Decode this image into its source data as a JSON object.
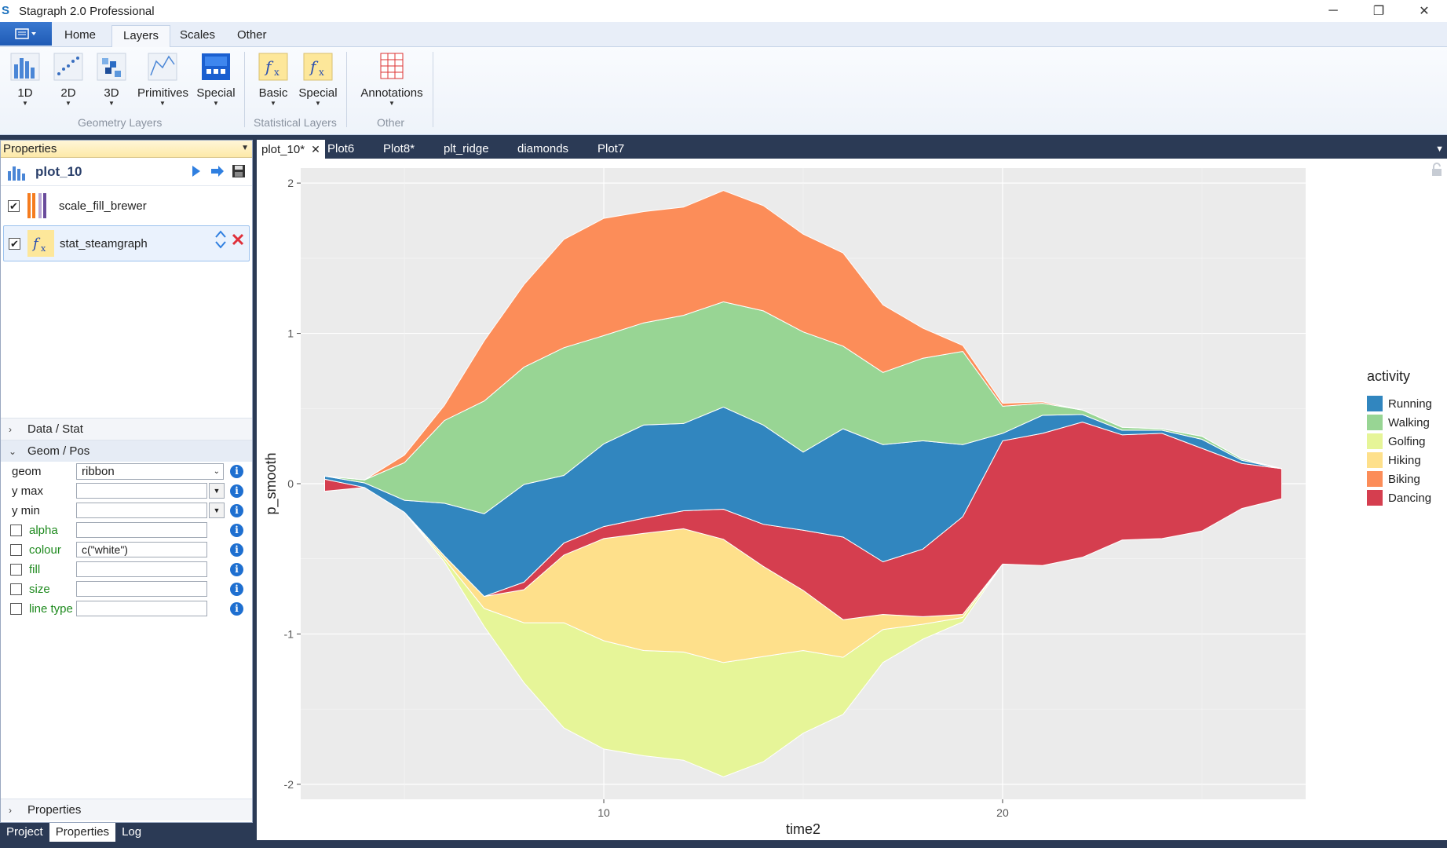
{
  "window": {
    "title": "Stagraph 2.0 Professional",
    "minimize": "─",
    "maximize": "❐",
    "close": "✕"
  },
  "ribbon": {
    "tabs": [
      "Home",
      "Layers",
      "Scales",
      "Other"
    ],
    "buttons": {
      "b1d": "1D",
      "b2d": "2D",
      "b3d": "3D",
      "primitives": "Primitives",
      "special_geom": "Special",
      "basic": "Basic",
      "special_stat": "Special",
      "annotations": "Annotations"
    },
    "groups": {
      "geometry": "Geometry Layers",
      "statistical": "Statistical Layers",
      "other": "Other"
    }
  },
  "properties": {
    "header": "Properties",
    "plot_name": "plot_10",
    "layers": [
      {
        "label": "scale_fill_brewer",
        "checked": true
      },
      {
        "label": "stat_steamgraph",
        "checked": true
      }
    ],
    "sections": {
      "data_stat": "Data / Stat",
      "geom_pos": "Geom / Pos",
      "properties": "Properties"
    },
    "geom": {
      "geom_label": "geom",
      "geom_value": "ribbon",
      "ymax_label": "y max",
      "ymin_label": "y min",
      "alpha_label": "alpha",
      "colour_label": "colour",
      "colour_value": "c(\"white\")",
      "fill_label": "fill",
      "size_label": "size",
      "linetype_label": "line type"
    }
  },
  "bottom_tabs": [
    "Project",
    "Properties",
    "Log"
  ],
  "doc_tabs": [
    "plot_10*",
    "Plot6",
    "Plot8*",
    "plt_ridge",
    "diamonds",
    "Plot7"
  ],
  "chart_data": {
    "type": "area",
    "xlabel": "time2",
    "ylabel": "p_smooth",
    "xlim": [
      2.4,
      27.6
    ],
    "ylim": [
      -2.1,
      2.1
    ],
    "xticks": [
      10,
      20
    ],
    "yticks": [
      2,
      1,
      0,
      -1,
      -2
    ],
    "legend_title": "activity",
    "legend_position": "right",
    "grid": true,
    "x": [
      3,
      4,
      5,
      6,
      7,
      8,
      9,
      10,
      11,
      12,
      13,
      14,
      15,
      16,
      17,
      18,
      19,
      20,
      21,
      22,
      23,
      24,
      25,
      26,
      27
    ],
    "series": [
      {
        "name": "Running",
        "color": "#3186bf",
        "values": [
          0.02,
          0.03,
          0.08,
          0.35,
          0.55,
          0.65,
          0.45,
          0.55,
          0.62,
          0.58,
          0.68,
          0.66,
          0.52,
          0.72,
          0.78,
          0.72,
          0.48,
          0.05,
          0.12,
          0.05,
          0.03,
          0.02,
          0.06,
          0.02,
          0.0
        ]
      },
      {
        "name": "Walking",
        "color": "#98d594",
        "values": [
          0.0,
          0.02,
          0.25,
          0.55,
          0.75,
          0.78,
          0.85,
          0.72,
          0.68,
          0.72,
          0.7,
          0.76,
          0.8,
          0.55,
          0.48,
          0.55,
          0.62,
          0.18,
          0.08,
          0.03,
          0.02,
          0.01,
          0.02,
          0.01,
          0.0
        ]
      },
      {
        "name": "Golfing",
        "color": "#e6f598",
        "values": [
          0.0,
          0.0,
          0.0,
          0.02,
          0.12,
          0.4,
          0.7,
          0.72,
          0.7,
          0.72,
          0.76,
          0.7,
          0.55,
          0.38,
          0.22,
          0.1,
          0.03,
          0.0,
          0.0,
          0.0,
          0.0,
          0.0,
          0.0,
          0.0,
          0.0
        ]
      },
      {
        "name": "Hiking",
        "color": "#fee08b",
        "values": [
          0.0,
          0.0,
          0.0,
          0.02,
          0.08,
          0.22,
          0.45,
          0.68,
          0.78,
          0.82,
          0.82,
          0.6,
          0.4,
          0.25,
          0.1,
          0.05,
          0.02,
          0.0,
          0.0,
          0.0,
          0.0,
          0.0,
          0.0,
          0.0,
          0.0
        ]
      },
      {
        "name": "Biking",
        "color": "#fc8d59",
        "values": [
          0.0,
          0.0,
          0.05,
          0.1,
          0.4,
          0.55,
          0.72,
          0.78,
          0.74,
          0.72,
          0.74,
          0.7,
          0.65,
          0.62,
          0.45,
          0.2,
          0.04,
          0.02,
          0.01,
          0.0,
          0.0,
          0.0,
          0.0,
          0.0,
          0.0
        ]
      },
      {
        "name": "Dancing",
        "color": "#d53e4f",
        "values": [
          0.08,
          0.0,
          0.0,
          0.0,
          0.0,
          0.05,
          0.08,
          0.08,
          0.1,
          0.12,
          0.2,
          0.28,
          0.4,
          0.55,
          0.35,
          0.45,
          0.65,
          0.82,
          0.88,
          0.9,
          0.7,
          0.7,
          0.55,
          0.3,
          0.2
        ]
      }
    ]
  }
}
